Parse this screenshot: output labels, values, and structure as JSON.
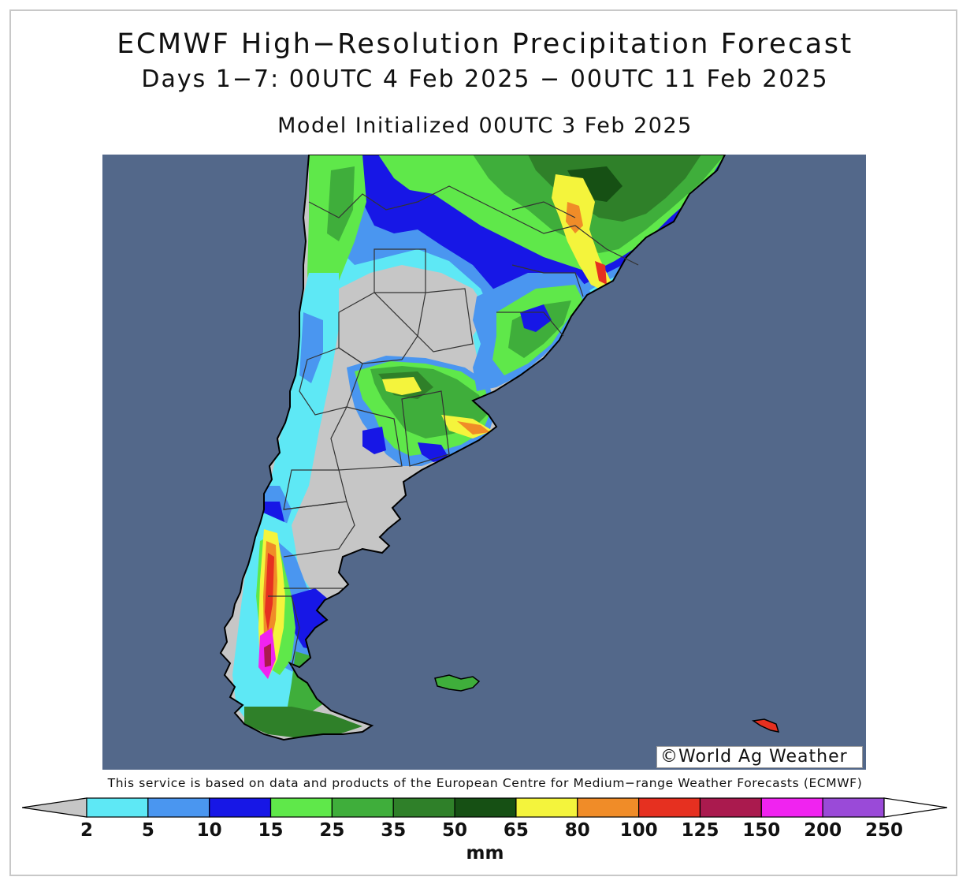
{
  "title": "ECMWF High−Resolution Precipitation Forecast",
  "subtitle": "Days 1−7: 00UTC 4 Feb 2025 − 00UTC 11 Feb 2025",
  "init_line": "Model Initialized 00UTC 3 Feb 2025",
  "credit": "©World Ag Weather",
  "disclaimer": "This service is based on data and products of the European Centre for Medium−range Weather Forecasts (ECMWF)",
  "colors": {
    "ocean": "#53688a",
    "land_dry": "#c6c6c6",
    "c5": "#5ee8f5",
    "c10": "#4a96f0",
    "c15": "#1717e6",
    "c25": "#5fe84a",
    "c35": "#3fae3b",
    "c50": "#2f8029",
    "c65": "#165014",
    "c80": "#f4f43c",
    "c100": "#f08c28",
    "c125": "#e63020",
    "c150": "#aa1a4e",
    "c200": "#f023f0",
    "c250": "#9a4ad8"
  },
  "legend": {
    "ticks": [
      "2",
      "5",
      "10",
      "15",
      "25",
      "35",
      "50",
      "65",
      "80",
      "100",
      "125",
      "150",
      "200",
      "250"
    ],
    "colors": [
      "#5ee8f5",
      "#4a96f0",
      "#1717e6",
      "#5fe84a",
      "#3fae3b",
      "#2f8029",
      "#165014",
      "#f4f43c",
      "#f08c28",
      "#e63020",
      "#aa1a4e",
      "#f023f0",
      "#9a4ad8"
    ],
    "under_color": "#c6c6c6",
    "over_color": "#ffffff",
    "unit": "mm"
  }
}
